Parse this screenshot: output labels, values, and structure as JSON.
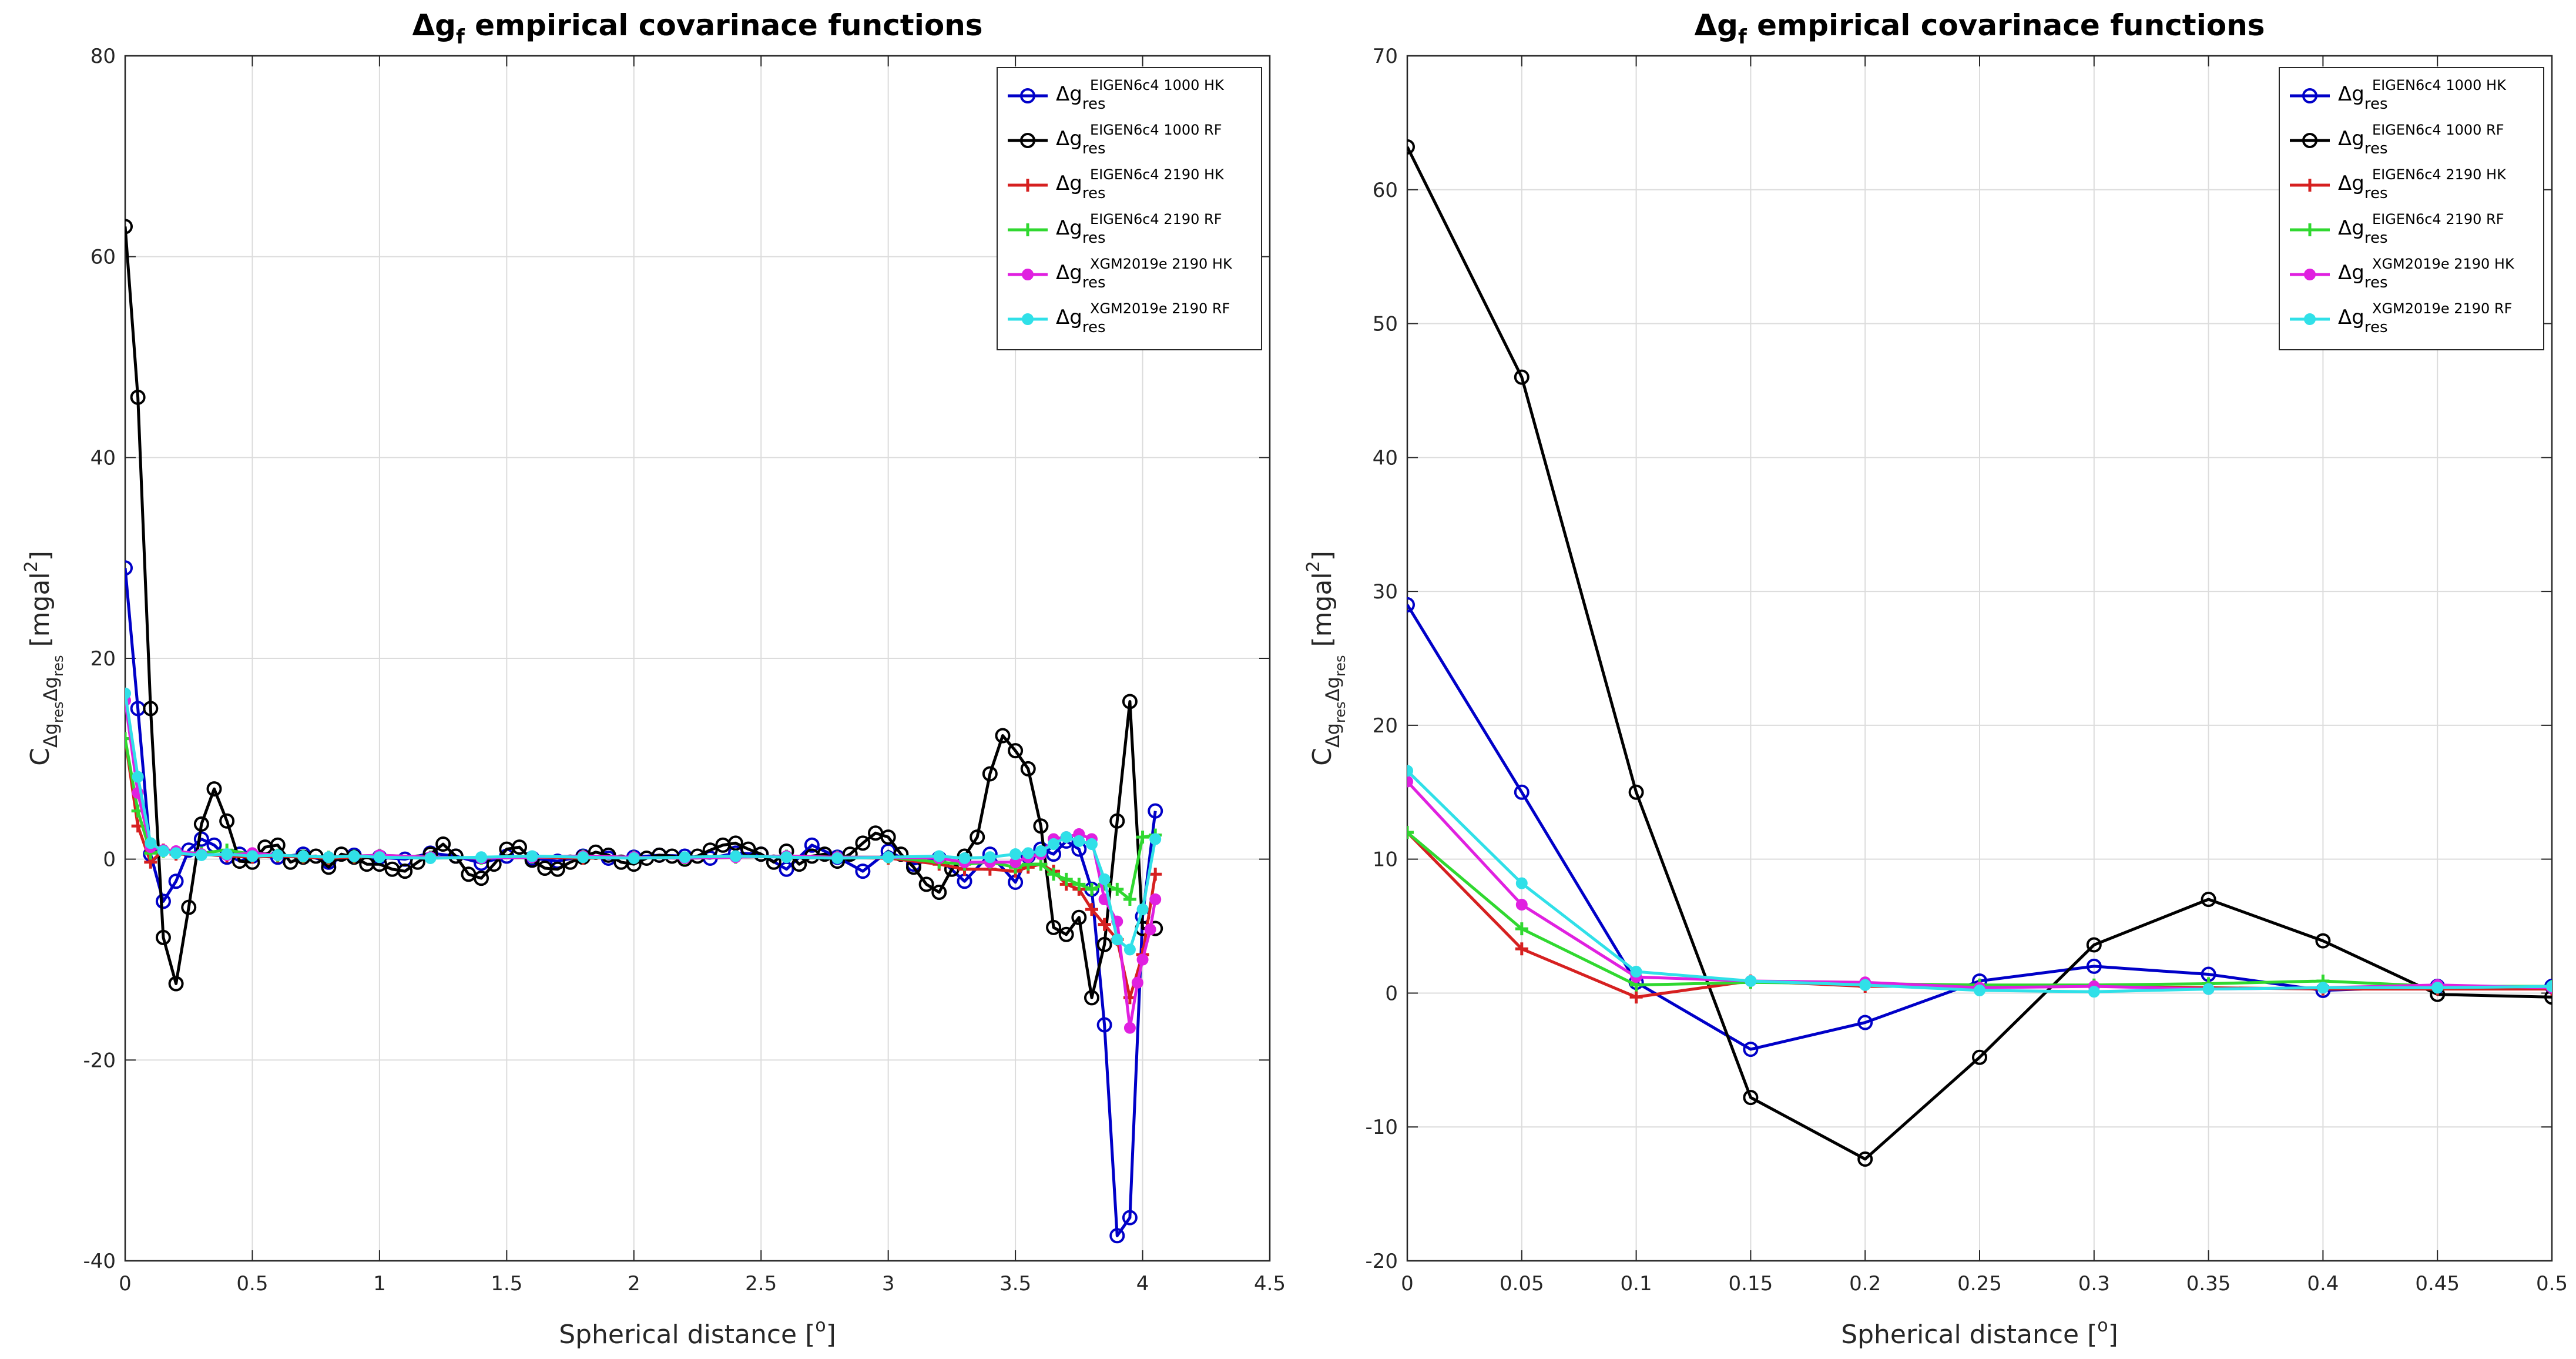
{
  "chart_data": [
    {
      "type": "line",
      "title": {
        "base": "Δg",
        "sub": "f",
        "rest": " empirical covarinace functions"
      },
      "xlabel": {
        "base": "Spherical distance [",
        "sup": "o",
        "end": "]"
      },
      "ylabel": {
        "lead": "C",
        "sub1": "Δg",
        "sub1sub": "res",
        "sub2": "Δg",
        "sub2sub": "res",
        "unit": " [mgal",
        "unitsup": "2",
        "unitend": "]"
      },
      "xlim": [
        0,
        4.5
      ],
      "ylim": [
        -40,
        80
      ],
      "xticks": [
        "0",
        "0.5",
        "1",
        "1.5",
        "2",
        "2.5",
        "3",
        "3.5",
        "4",
        "4.5"
      ],
      "yticks": [
        "-40",
        "-20",
        "0",
        "20",
        "40",
        "60",
        "80"
      ],
      "xtick_values": [
        0,
        0.5,
        1,
        1.5,
        2,
        2.5,
        3,
        3.5,
        4,
        4.5
      ],
      "ytick_values": [
        -40,
        -20,
        0,
        20,
        40,
        60,
        80
      ],
      "grid": true,
      "legend_position": "top-right",
      "series": [
        {
          "name": "EIGEN6c4 1000 HK",
          "legend": {
            "base": "Δg",
            "sub": "res",
            "sup": "EIGEN6c4 1000 HK"
          },
          "color": "#0000c8",
          "marker": "circle",
          "x": [
            0,
            0.05,
            0.1,
            0.15,
            0.2,
            0.25,
            0.3,
            0.35,
            0.4,
            0.45,
            0.5,
            0.6,
            0.7,
            0.8,
            0.9,
            1.0,
            1.1,
            1.2,
            1.3,
            1.4,
            1.5,
            1.6,
            1.7,
            1.8,
            1.9,
            2.0,
            2.1,
            2.2,
            2.3,
            2.4,
            2.5,
            2.6,
            2.7,
            2.8,
            2.9,
            3.0,
            3.1,
            3.2,
            3.3,
            3.4,
            3.5,
            3.55,
            3.6,
            3.65,
            3.7,
            3.75,
            3.8,
            3.85,
            3.9,
            3.95,
            4.0,
            4.05
          ],
          "y": [
            29,
            15,
            0.5,
            -4.2,
            -2.2,
            0.9,
            2,
            1.4,
            0.2,
            0.5,
            0.3,
            0.2,
            0.5,
            -0.3,
            0.4,
            0.2,
            0,
            0.6,
            0.3,
            -0.4,
            0.3,
            0.1,
            -0.2,
            0.3,
            0.1,
            0.2,
            0.4,
            0.3,
            0.1,
            0.6,
            0.5,
            -1,
            1.4,
            0.2,
            -1.2,
            0.8,
            -0.5,
            0.1,
            -2.2,
            0.5,
            -2.3,
            0.3,
            1,
            0.5,
            1.8,
            1,
            -3,
            -16.5,
            -37.5,
            -35.7,
            -5.7,
            4.8
          ]
        },
        {
          "name": "EIGEN6c4 1000 RF",
          "legend": {
            "base": "Δg",
            "sub": "res",
            "sup": "EIGEN6c4 1000 RF"
          },
          "color": "#000000",
          "marker": "circle",
          "x": [
            0,
            0.05,
            0.1,
            0.15,
            0.2,
            0.25,
            0.3,
            0.35,
            0.4,
            0.45,
            0.5,
            0.55,
            0.6,
            0.65,
            0.7,
            0.75,
            0.8,
            0.85,
            0.9,
            0.95,
            1.0,
            1.05,
            1.1,
            1.15,
            1.2,
            1.25,
            1.3,
            1.35,
            1.4,
            1.45,
            1.5,
            1.55,
            1.6,
            1.65,
            1.7,
            1.75,
            1.8,
            1.85,
            1.9,
            1.95,
            2.0,
            2.05,
            2.1,
            2.15,
            2.2,
            2.25,
            2.3,
            2.35,
            2.4,
            2.45,
            2.5,
            2.55,
            2.6,
            2.65,
            2.7,
            2.75,
            2.8,
            2.85,
            2.9,
            2.95,
            3.0,
            3.05,
            3.1,
            3.15,
            3.2,
            3.25,
            3.3,
            3.35,
            3.4,
            3.45,
            3.5,
            3.55,
            3.6,
            3.65,
            3.7,
            3.75,
            3.8,
            3.85,
            3.9,
            3.95,
            4.0,
            4.05
          ],
          "y": [
            63,
            46,
            15,
            -7.8,
            -12.4,
            -4.8,
            3.5,
            7,
            3.8,
            -0.2,
            -0.3,
            1.2,
            1.4,
            -0.3,
            0.2,
            0.3,
            -0.8,
            0.5,
            0.2,
            -0.5,
            -0.5,
            -1,
            -1.2,
            -0.3,
            0.5,
            1.5,
            0.3,
            -1.5,
            -1.9,
            -0.5,
            1,
            1.2,
            -0.1,
            -0.9,
            -1,
            -0.3,
            0.2,
            0.7,
            0.4,
            -0.3,
            -0.5,
            0.1,
            0.4,
            0.3,
            0,
            0.3,
            0.9,
            1.4,
            1.6,
            1,
            0.5,
            -0.3,
            0.8,
            -0.5,
            0.3,
            0.5,
            -0.2,
            0.5,
            1.6,
            2.6,
            2.2,
            0.5,
            -0.8,
            -2.5,
            -3.3,
            -1,
            0.3,
            2.2,
            8.5,
            12.3,
            10.8,
            9,
            3.3,
            -6.8,
            -7.5,
            -5.8,
            -13.8,
            -8.5,
            3.8,
            15.7,
            -6.9,
            -6.9
          ]
        },
        {
          "name": "EIGEN6c4 2190 HK",
          "legend": {
            "base": "Δg",
            "sub": "res",
            "sup": "EIGEN6c4 2190 HK"
          },
          "color": "#d62020",
          "marker": "plus",
          "x": [
            0,
            0.05,
            0.1,
            0.15,
            0.2,
            0.3,
            0.4,
            0.5,
            0.6,
            0.7,
            0.8,
            0.9,
            1.0,
            1.2,
            1.4,
            1.6,
            1.8,
            2.0,
            2.2,
            2.4,
            2.6,
            2.8,
            3.0,
            3.2,
            3.3,
            3.4,
            3.5,
            3.55,
            3.6,
            3.65,
            3.7,
            3.75,
            3.8,
            3.85,
            3.9,
            3.95,
            4.0,
            4.05
          ],
          "y": [
            12,
            3.3,
            -0.3,
            0.9,
            0.5,
            0.5,
            0.3,
            0.2,
            0.3,
            0.2,
            0.1,
            0.2,
            0.3,
            0.2,
            0.1,
            0.2,
            0.1,
            0.2,
            0.1,
            0.2,
            0.3,
            0.2,
            0.1,
            -0.5,
            -1,
            -1,
            -1.2,
            -0.8,
            -0.5,
            -1.2,
            -2.5,
            -3,
            -5,
            -6.5,
            -8,
            -13.8,
            -9.5,
            -1.5
          ]
        },
        {
          "name": "EIGEN6c4 2190 RF",
          "legend": {
            "base": "Δg",
            "sub": "res",
            "sup": "EIGEN6c4 2190 RF"
          },
          "color": "#30d830",
          "marker": "plus",
          "x": [
            0,
            0.05,
            0.1,
            0.15,
            0.2,
            0.3,
            0.4,
            0.5,
            0.6,
            0.7,
            0.8,
            0.9,
            1.0,
            1.2,
            1.4,
            1.6,
            1.8,
            2.0,
            2.2,
            2.4,
            2.6,
            2.8,
            3.0,
            3.2,
            3.3,
            3.4,
            3.5,
            3.55,
            3.6,
            3.65,
            3.7,
            3.75,
            3.8,
            3.85,
            3.9,
            3.95,
            4.0,
            4.05
          ],
          "y": [
            12,
            4.8,
            0.6,
            0.8,
            0.7,
            0.6,
            0.9,
            0.5,
            0.4,
            0.3,
            0.2,
            0.3,
            0.4,
            0.2,
            0.1,
            0.2,
            0.3,
            0.2,
            0.1,
            0.2,
            0.3,
            0.2,
            0.2,
            -0.3,
            -0.5,
            -0.3,
            -0.8,
            -0.5,
            -0.5,
            -1.5,
            -2,
            -2.5,
            -3,
            -2.5,
            -3,
            -4,
            2.2,
            2.4
          ]
        },
        {
          "name": "XGM2019e 2190 HK",
          "legend": {
            "base": "Δg",
            "sub": "res",
            "sup": "XGM2019e 2190 HK"
          },
          "color": "#e020e0",
          "marker": "dot",
          "x": [
            0,
            0.05,
            0.1,
            0.15,
            0.2,
            0.3,
            0.4,
            0.5,
            0.6,
            0.7,
            0.8,
            0.9,
            1.0,
            1.2,
            1.4,
            1.6,
            1.8,
            2.0,
            2.2,
            2.4,
            2.6,
            2.8,
            3.0,
            3.2,
            3.3,
            3.4,
            3.5,
            3.55,
            3.6,
            3.65,
            3.7,
            3.75,
            3.8,
            3.85,
            3.9,
            3.95,
            3.98,
            4.0,
            4.03,
            4.05
          ],
          "y": [
            15.8,
            6.6,
            1.2,
            0.9,
            0.8,
            0.5,
            0.4,
            0.6,
            0.4,
            0.3,
            0.2,
            0.3,
            0.4,
            0.2,
            0.1,
            0.2,
            0.3,
            0.2,
            0.1,
            0.2,
            0.3,
            0.2,
            0.2,
            0.1,
            -0.3,
            -0.3,
            -0.3,
            0.2,
            0.5,
            2,
            2.2,
            2.5,
            2,
            -4,
            -6.2,
            -16.8,
            -12.3,
            -10,
            -7,
            -4
          ]
        },
        {
          "name": "XGM2019e 2190 RF",
          "legend": {
            "base": "Δg",
            "sub": "res",
            "sup": "XGM2019e 2190 RF"
          },
          "color": "#30e0e8",
          "marker": "dot",
          "x": [
            0,
            0.05,
            0.1,
            0.15,
            0.2,
            0.3,
            0.4,
            0.5,
            0.6,
            0.7,
            0.8,
            0.9,
            1.0,
            1.2,
            1.4,
            1.6,
            1.8,
            2.0,
            2.2,
            2.4,
            2.6,
            2.8,
            3.0,
            3.2,
            3.3,
            3.4,
            3.5,
            3.55,
            3.6,
            3.65,
            3.7,
            3.75,
            3.8,
            3.85,
            3.9,
            3.95,
            4.0,
            4.05
          ],
          "y": [
            16.5,
            8.2,
            1.6,
            0.8,
            0.6,
            0.4,
            0.5,
            0.3,
            0.4,
            0.3,
            0.2,
            0.3,
            0.2,
            0.1,
            0.2,
            0.3,
            0.2,
            0.1,
            0.2,
            0.3,
            0.2,
            0.1,
            0.2,
            0.3,
            0.1,
            0.2,
            0.5,
            0.6,
            0.8,
            1.5,
            2.2,
            1.8,
            1.5,
            -2,
            -8,
            -9,
            -5,
            2
          ]
        }
      ]
    },
    {
      "type": "line",
      "title": {
        "base": "Δg",
        "sub": "f",
        "rest": " empirical covarinace functions"
      },
      "xlabel": {
        "base": "Spherical distance [",
        "sup": "o",
        "end": "]"
      },
      "ylabel": {
        "lead": "C",
        "sub1": "Δg",
        "sub1sub": "res",
        "sub2": "Δg",
        "sub2sub": "res",
        "unit": " [mgal",
        "unitsup": "2",
        "unitend": "]"
      },
      "xlim": [
        0,
        0.5
      ],
      "ylim": [
        -20,
        70
      ],
      "xticks": [
        "0",
        "0.05",
        "0.1",
        "0.15",
        "0.2",
        "0.25",
        "0.3",
        "0.35",
        "0.4",
        "0.45",
        "0.5"
      ],
      "yticks": [
        "-20",
        "-10",
        "0",
        "10",
        "20",
        "30",
        "40",
        "50",
        "60",
        "70"
      ],
      "xtick_values": [
        0,
        0.05,
        0.1,
        0.15,
        0.2,
        0.25,
        0.3,
        0.35,
        0.4,
        0.45,
        0.5
      ],
      "ytick_values": [
        -20,
        -10,
        0,
        10,
        20,
        30,
        40,
        50,
        60,
        70
      ],
      "grid": true,
      "legend_position": "top-right",
      "series": [
        {
          "name": "EIGEN6c4 1000 HK",
          "legend": {
            "base": "Δg",
            "sub": "res",
            "sup": "EIGEN6c4 1000 HK"
          },
          "color": "#0000c8",
          "marker": "circle",
          "x": [
            0,
            0.05,
            0.1,
            0.15,
            0.2,
            0.25,
            0.3,
            0.35,
            0.4,
            0.45,
            0.5
          ],
          "y": [
            29,
            15,
            0.8,
            -4.2,
            -2.2,
            0.9,
            2,
            1.4,
            0.2,
            0.5,
            0.5
          ]
        },
        {
          "name": "EIGEN6c4 1000 RF",
          "legend": {
            "base": "Δg",
            "sub": "res",
            "sup": "EIGEN6c4 1000 RF"
          },
          "color": "#000000",
          "marker": "circle",
          "x": [
            0,
            0.05,
            0.1,
            0.15,
            0.2,
            0.25,
            0.3,
            0.35,
            0.4,
            0.45,
            0.5
          ],
          "y": [
            63.2,
            46,
            15,
            -7.8,
            -12.4,
            -4.8,
            3.6,
            7,
            3.9,
            -0.1,
            -0.3
          ]
        },
        {
          "name": "EIGEN6c4 2190 HK",
          "legend": {
            "base": "Δg",
            "sub": "res",
            "sup": "EIGEN6c4 2190 HK"
          },
          "color": "#d62020",
          "marker": "plus",
          "x": [
            0,
            0.05,
            0.1,
            0.15,
            0.2,
            0.25,
            0.3,
            0.35,
            0.4,
            0.45,
            0.5
          ],
          "y": [
            12,
            3.3,
            -0.3,
            0.9,
            0.5,
            0.5,
            0.5,
            0.4,
            0.3,
            0.3,
            0.3
          ]
        },
        {
          "name": "EIGEN6c4 2190 RF",
          "legend": {
            "base": "Δg",
            "sub": "res",
            "sup": "EIGEN6c4 2190 RF"
          },
          "color": "#30d830",
          "marker": "plus",
          "x": [
            0,
            0.05,
            0.1,
            0.15,
            0.2,
            0.25,
            0.3,
            0.35,
            0.4,
            0.45,
            0.5
          ],
          "y": [
            12,
            4.8,
            0.6,
            0.8,
            0.7,
            0.6,
            0.6,
            0.7,
            0.9,
            0.5,
            0.5
          ]
        },
        {
          "name": "XGM2019e 2190 HK",
          "legend": {
            "base": "Δg",
            "sub": "res",
            "sup": "XGM2019e 2190 HK"
          },
          "color": "#e020e0",
          "marker": "dot",
          "x": [
            0,
            0.05,
            0.1,
            0.15,
            0.2,
            0.25,
            0.3,
            0.35,
            0.4,
            0.45,
            0.5
          ],
          "y": [
            15.8,
            6.6,
            1.2,
            0.9,
            0.8,
            0.4,
            0.5,
            0.3,
            0.4,
            0.6,
            0.4
          ]
        },
        {
          "name": "XGM2019e 2190 RF",
          "legend": {
            "base": "Δg",
            "sub": "res",
            "sup": "XGM2019e 2190 RF"
          },
          "color": "#30e0e8",
          "marker": "dot",
          "x": [
            0,
            0.05,
            0.1,
            0.15,
            0.2,
            0.25,
            0.3,
            0.35,
            0.4,
            0.45,
            0.5
          ],
          "y": [
            16.6,
            8.2,
            1.6,
            0.9,
            0.6,
            0.2,
            0.1,
            0.3,
            0.4,
            0.4,
            0.5
          ]
        }
      ]
    }
  ]
}
